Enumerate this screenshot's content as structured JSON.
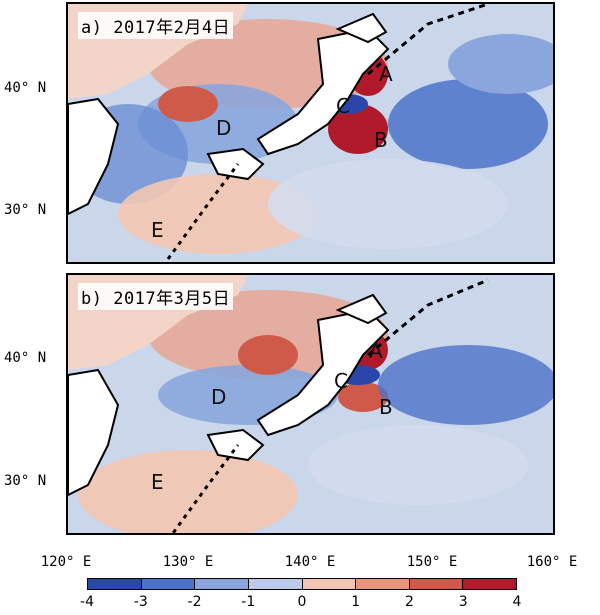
{
  "panels": [
    {
      "title": "a) 2017年2月4日",
      "labels": [
        "A",
        "B",
        "C",
        "D",
        "E"
      ]
    },
    {
      "title": "b) 2017年3月5日",
      "labels": [
        "A",
        "B",
        "C",
        "D",
        "E"
      ]
    }
  ],
  "axes": {
    "lat_labels": [
      "40° N",
      "30° N"
    ],
    "lon_labels": [
      "120° E",
      "130° E",
      "140° E",
      "150° E",
      "160° E"
    ]
  },
  "colorbar": {
    "ticks": [
      "-4",
      "-3",
      "-2",
      "-1",
      "0",
      "1",
      "2",
      "3",
      "4"
    ],
    "colors": [
      "#2a46a8",
      "#4c73c9",
      "#8aa6dd",
      "#bccbea",
      "#f3c6b3",
      "#e7957b",
      "#cf5a4a",
      "#b01a2a"
    ]
  }
}
